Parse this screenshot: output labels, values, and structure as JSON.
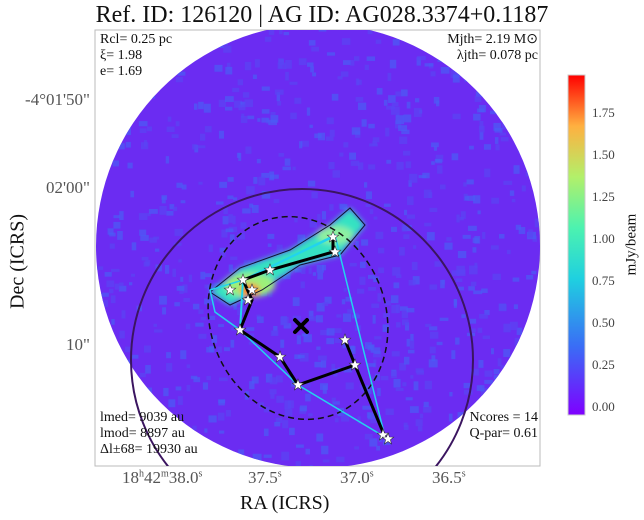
{
  "chart_data": {
    "type": "heatmap",
    "title": "Ref. ID: 126120 | AG ID: AG028.3374+0.1187",
    "xlabel": "RA (ICRS)",
    "ylabel": "Dec (ICRS)",
    "xticks": [
      "18h42m38.0s",
      "37.5s",
      "37.0s",
      "36.5s"
    ],
    "xtick_parts": [
      [
        "18",
        "h",
        "42",
        "m",
        "38.0",
        "s"
      ],
      [
        "37.5",
        "s"
      ],
      [
        "37.0",
        "s"
      ],
      [
        "36.5",
        "s"
      ]
    ],
    "yticks": [
      "-4°01'50\"",
      "02'00\"",
      "10\""
    ],
    "colorbar": {
      "label": "mJy/beam",
      "ticks": [
        0.0,
        0.25,
        0.5,
        0.75,
        1.0,
        1.25,
        1.5,
        1.75
      ],
      "tick_labels": [
        "0.00",
        "0.25",
        "0.50",
        "0.75",
        "1.00",
        "1.25",
        "1.50",
        "1.75"
      ],
      "range": [
        -0.1,
        1.97
      ],
      "colormap": "rainbow"
    },
    "annotations": {
      "top_left": [
        "Rcl= 0.25 pc",
        "ξ= 1.98",
        "e= 1.69"
      ],
      "top_right": [
        "Mjth= 2.19 M⊙",
        "λjth= 0.078 pc"
      ],
      "bottom_left": [
        "lmed= 9039 au",
        "lmod= 8897 au",
        "Δl±68= 19930 au"
      ],
      "bottom_right": [
        "Ncores = 14",
        "Q-par= 0.61"
      ]
    },
    "n_cores": 14,
    "colors": {
      "background": "#6b2cf2",
      "mst": "#000000",
      "hull": "#22d3ee",
      "circle": "#3b1560"
    }
  }
}
